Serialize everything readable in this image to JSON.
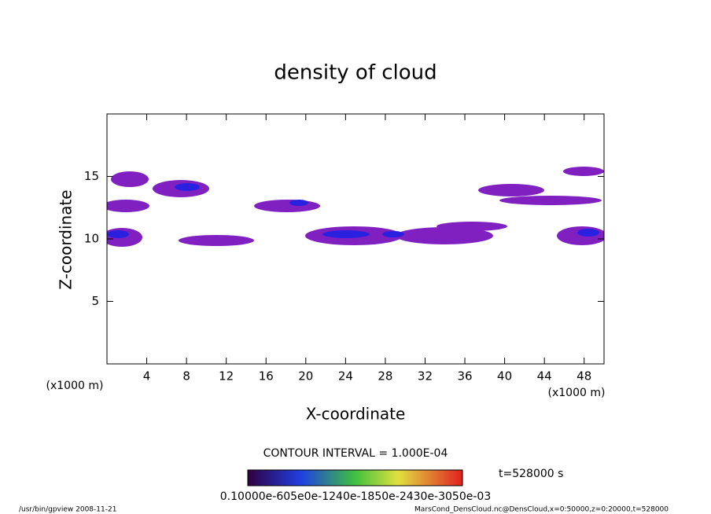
{
  "chart_data": {
    "type": "contour",
    "title": "density of cloud",
    "x_label": "X-coordinate",
    "y_label": "Z-coordinate",
    "x_unit_left": "(x1000 m)",
    "x_unit_right": "(x1000 m)",
    "xlim": [
      0,
      50
    ],
    "xticks": [
      4,
      8,
      12,
      16,
      20,
      24,
      28,
      32,
      36,
      40,
      44,
      48
    ],
    "ylim": [
      0,
      20
    ],
    "yticks": [
      5,
      10,
      15
    ],
    "contour_interval": "CONTOUR INTERVAL = 1.000E-04",
    "time_label": "t=528000 s",
    "colorbar_labels": "0.10000e-605e0e-1240e-1850e-2430e-3050e-03",
    "footer_left": "/usr/bin/gpview  2008-11-21",
    "footer_right": "MarsCond_DensCloud.nc@DensCloud,x=0:50000,z=0:20000,t=528000"
  }
}
